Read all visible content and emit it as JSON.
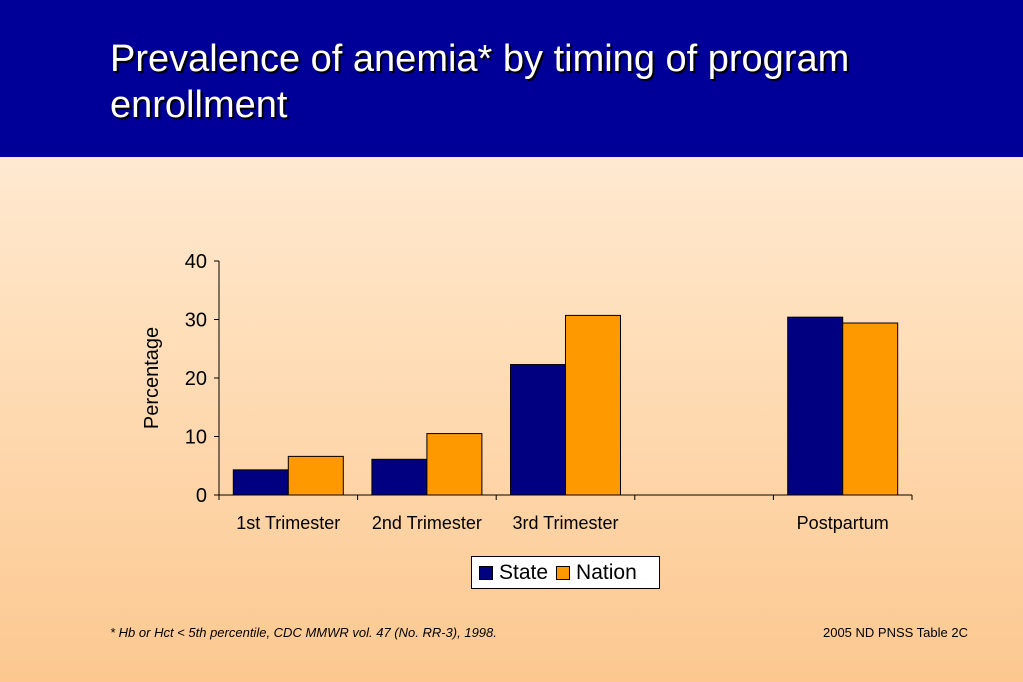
{
  "slide": {
    "title": "Prevalence of anemia* by timing of program enrollment",
    "footnote": "*  Hb or Hct < 5th percentile, CDC MMWR vol. 47 (No. RR-3), 1998.",
    "source": "2005 ND PNSS Table 2C"
  },
  "colors": {
    "header": "#000099",
    "state": "#000080",
    "nation": "#FF9900"
  },
  "chart_data": {
    "type": "bar",
    "categories": [
      "1st Trimester",
      "2nd Trimester",
      "3rd Trimester",
      "",
      "Postpartum"
    ],
    "series": [
      {
        "name": "State",
        "values": [
          4.3,
          6.1,
          22.3,
          null,
          30.4
        ]
      },
      {
        "name": "Nation",
        "values": [
          6.6,
          10.5,
          30.7,
          null,
          29.4
        ]
      }
    ],
    "xlabel": "",
    "ylabel": "Percentage",
    "ylim": [
      0,
      40
    ],
    "yticks": [
      0,
      10,
      20,
      30,
      40
    ],
    "grid": false,
    "legend": "bottom-center"
  }
}
